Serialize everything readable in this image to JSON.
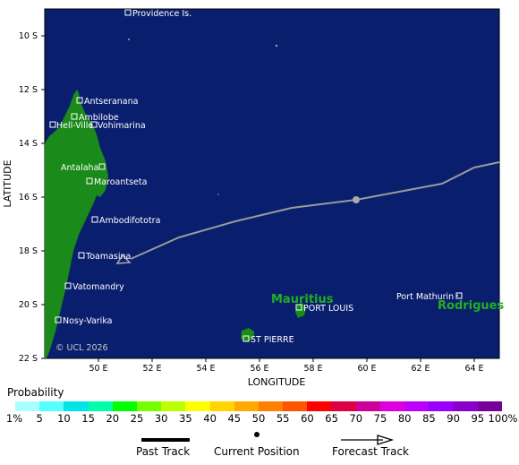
{
  "map": {
    "latitude_label": "LATITUDE",
    "longitude_label": "LONGITUDE",
    "lat_ticks": [
      "10 S",
      "12 S",
      "14 S",
      "16 S",
      "18 S",
      "20 S",
      "22 S"
    ],
    "lon_ticks": [
      "50 E",
      "52 E",
      "54 E",
      "56 E",
      "58 E",
      "60 E",
      "62 E",
      "64 E"
    ],
    "copyright": "© UCL 2026",
    "ocean_color": "#0a1e6e",
    "land_color": "#1a8a1a",
    "places": [
      "Providence Is.",
      "Antseranana",
      "Ambilobe",
      "Hell-Ville",
      "Vohimarina",
      "Antalaha",
      "Maroantseta",
      "Ambodifototra",
      "Toamasina",
      "Vatomandry",
      "Nosy-Varika",
      "PORT LOUIS",
      "ST PIERRE",
      "Port Mathurin"
    ],
    "islands": [
      "Mauritius",
      "Rodrigues"
    ],
    "track": {
      "past_points_lonlat": [
        [
          51.2,
          -18.3
        ],
        [
          53.0,
          -17.5
        ],
        [
          55.1,
          -16.9
        ],
        [
          57.2,
          -16.4
        ],
        [
          59.6,
          -16.1
        ],
        [
          62.8,
          -15.5
        ],
        [
          64.0,
          -14.9
        ],
        [
          65.2,
          -14.7
        ]
      ],
      "current_position_lonlat": [
        59.6,
        -16.1
      ]
    }
  },
  "legend": {
    "title": "Probability",
    "colors": [
      "#aaffff",
      "#55ffff",
      "#00e6e6",
      "#00ffaa",
      "#00ff00",
      "#77ff00",
      "#bbff00",
      "#ffff00",
      "#ffd400",
      "#ffaa00",
      "#ff7f00",
      "#ff5500",
      "#ff0000",
      "#dd0044",
      "#cc0099",
      "#dd00dd",
      "#bb00ff",
      "#9900ff",
      "#8800cc",
      "#770099"
    ],
    "labels": [
      "1%",
      "5",
      "10",
      "15",
      "20",
      "25",
      "30",
      "35",
      "40",
      "45",
      "50",
      "55",
      "60",
      "65",
      "70",
      "75",
      "80",
      "85",
      "90",
      "95",
      "100%"
    ]
  },
  "key": {
    "past_track": "Past Track",
    "current_position": "Current Position",
    "forecast_track": "Forecast Track"
  }
}
